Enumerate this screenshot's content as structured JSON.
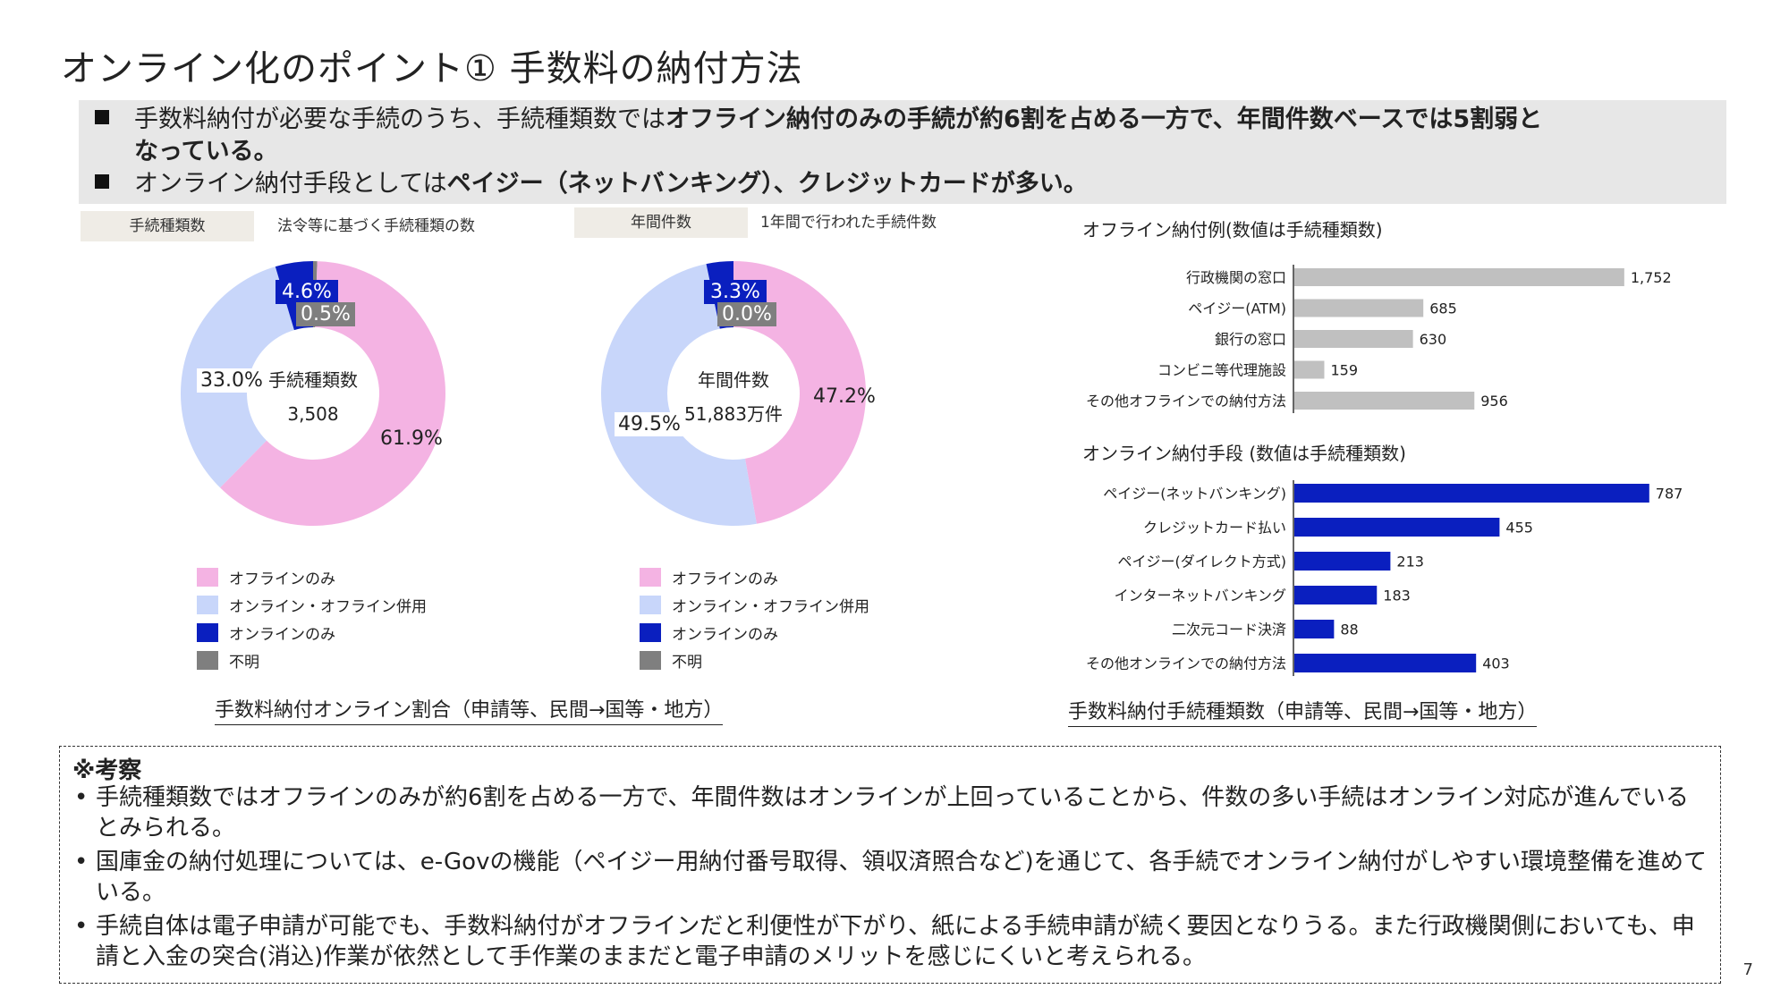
{
  "title": "オンライン化のポイント① 手数料の納付方法",
  "summary": {
    "line1_pre": "手数料納付が必要な手続のうち、手続種類数では",
    "line1_bold": "オフライン納付のみの手続が約6割を占める一方で、年間件数ベースでは5割弱と",
    "line2_bold": "なっている。",
    "line3_pre": "オンライン納付手段としては",
    "line3_bold": "ペイジー（ネットバンキング）、クレジットカードが多い。"
  },
  "left_tag": "手続種類数",
  "left_desc": "法令等に基づく手続種類の数",
  "mid_tag": "年間件数",
  "mid_desc": "1年間で行われた手続件数",
  "legend": [
    "オフラインのみ",
    "オンライン・オフライン併用",
    "オンラインのみ",
    "不明"
  ],
  "colors": {
    "offline": "#f4b3e3",
    "both": "#c8d6fa",
    "online": "#0a1fbf",
    "unknown": "#7f7f7f",
    "offline_bar": "#c0c0c0",
    "online_bar": "#0a1fbf"
  },
  "donut_caption": "手数料納付オンライン割合（申請等、民間→国等・地方）",
  "bar_caption": "手数料納付手続種類数（申請等、民間→国等・地方）",
  "notes": {
    "heading": "※考察",
    "items": [
      "手続種類数ではオフラインのみが約6割を占める一方で、年間件数はオンラインが上回っていることから、件数の多い手続はオンライン対応が進んでいるとみられる。",
      "国庫金の納付処理については、e-Govの機能（ペイジー用納付番号取得、領収済照合など)を通じて、各手続でオンライン納付がしやすい環境整備を進めている。",
      "手続自体は電子申請が可能でも、手数料納付がオフラインだと利便性が下がり、紙による手続申請が続く要因となりうる。また行政機関側においても、申請と入金の突合(消込)作業が依然として手作業のままだと電子申請のメリットを感じにくいと考えられる。"
    ]
  },
  "page_number": "7",
  "chart_data": [
    {
      "type": "pie",
      "center_title": "手続種類数",
      "center_value": "3,508",
      "categories": [
        "オフラインのみ",
        "オンライン・オフライン併用",
        "オンラインのみ",
        "不明"
      ],
      "values": [
        61.9,
        33.0,
        4.6,
        0.5
      ],
      "labels": [
        "61.9%",
        "33.0%",
        "4.6%",
        "0.5%"
      ]
    },
    {
      "type": "pie",
      "center_title": "年間件数",
      "center_value": "51,883万件",
      "categories": [
        "オフラインのみ",
        "オンライン・オフライン併用",
        "オンラインのみ",
        "不明"
      ],
      "values": [
        47.2,
        49.5,
        3.3,
        0.0
      ],
      "labels": [
        "47.2%",
        "49.5%",
        "3.3%",
        "0.0%"
      ]
    },
    {
      "type": "bar",
      "title": "オフライン納付例(数値は手続種類数)",
      "categories": [
        "行政機関の窓口",
        "ペイジー(ATM)",
        "銀行の窓口",
        "コンビニ等代理施設",
        "その他オフラインでの納付方法"
      ],
      "values": [
        1752,
        685,
        630,
        159,
        956
      ],
      "labels": [
        "1,752",
        "685",
        "630",
        "159",
        "956"
      ],
      "xlim": [
        0,
        1900
      ]
    },
    {
      "type": "bar",
      "title": "オンライン納付手段 (数値は手続種類数)",
      "categories": [
        "ペイジー(ネットバンキング)",
        "クレジットカード払い",
        "ペイジー(ダイレクト方式)",
        "インターネットバンキング",
        "二次元コード決済",
        "その他オンラインでの納付方法"
      ],
      "values": [
        787,
        455,
        213,
        183,
        88,
        403
      ],
      "labels": [
        "787",
        "455",
        "213",
        "183",
        "88",
        "403"
      ],
      "xlim": [
        0,
        835
      ]
    }
  ]
}
